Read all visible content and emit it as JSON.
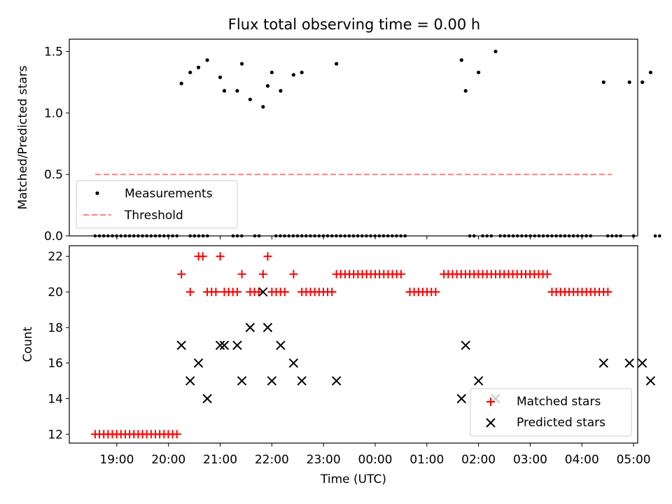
{
  "chart_data": [
    {
      "type": "scatter",
      "title": "Flux total observing time = 0.00 h",
      "ylabel": "Matched/Predicted stars",
      "ylim": [
        0,
        1.6
      ],
      "yticks": [
        0.0,
        0.5,
        1.0,
        1.5
      ],
      "ytick_labels": [
        "0.0",
        "0.5",
        "1.0",
        "1.5"
      ],
      "legend": {
        "placement": "lower-left",
        "entries": [
          "Measurements",
          "Threshold"
        ]
      },
      "threshold": {
        "name": "Threshold",
        "y": 0.5,
        "x_start": 18.58,
        "x_end": 28.58,
        "color": "#ff8080"
      },
      "measurements": {
        "name": "Measurements",
        "color": "#000000",
        "x_nonzero": [
          20.25,
          20.42,
          20.58,
          20.75,
          21.0,
          21.08,
          21.33,
          21.42,
          21.58,
          21.83,
          21.92,
          22.0,
          22.17,
          22.42,
          22.58,
          23.25,
          25.67,
          25.75,
          26.0,
          26.33,
          28.42,
          28.92,
          29.17,
          29.33
        ],
        "y_nonzero": [
          1.24,
          1.33,
          1.37,
          1.43,
          1.29,
          1.18,
          1.18,
          1.4,
          1.11,
          1.05,
          1.22,
          1.33,
          1.18,
          1.31,
          1.33,
          1.4,
          1.43,
          1.18,
          1.33,
          1.5,
          1.25,
          1.25,
          1.25,
          1.33
        ],
        "zero_segments": [
          [
            18.58,
            20.17,
            0.0833
          ],
          [
            20.42,
            20.83,
            0.0833
          ],
          [
            21.25,
            21.42,
            0.0833
          ],
          [
            21.67,
            21.83,
            0.0833
          ],
          [
            22.08,
            22.75,
            0.0833
          ],
          [
            22.83,
            24.58,
            0.0833
          ],
          [
            25.83,
            25.92,
            0.0833
          ],
          [
            26.08,
            26.25,
            0.0833
          ],
          [
            26.42,
            28.25,
            0.0833
          ],
          [
            28.5,
            28.83,
            0.0833
          ],
          [
            29.0,
            29.08,
            0.0833
          ],
          [
            29.42,
            29.58,
            0.0833
          ]
        ]
      }
    },
    {
      "type": "scatter",
      "xlabel": "Time (UTC)",
      "ylabel": "Count",
      "xlim": [
        18.08,
        29.08
      ],
      "ylim": [
        11.5,
        22.6
      ],
      "x_tick_hours": [
        19,
        20,
        21,
        22,
        23,
        24,
        25,
        26,
        27,
        28,
        29
      ],
      "x_tick_labels": [
        "19:00",
        "20:00",
        "21:00",
        "22:00",
        "23:00",
        "00:00",
        "01:00",
        "02:00",
        "03:00",
        "04:00",
        "05:00"
      ],
      "yticks": [
        12,
        14,
        16,
        18,
        20,
        22
      ],
      "ytick_labels": [
        "12",
        "14",
        "16",
        "18",
        "20",
        "22"
      ],
      "legend": {
        "placement": "lower-right",
        "entries": [
          "Matched stars",
          "Predicted stars"
        ]
      },
      "matched": {
        "name": "Matched stars",
        "color": "#ff0000",
        "segments": [
          [
            18.58,
            20.17,
            12
          ],
          [
            20.25,
            20.33,
            21
          ],
          [
            20.42,
            20.5,
            20
          ],
          [
            20.58,
            20.67,
            22
          ],
          [
            20.75,
            20.92,
            20
          ],
          [
            21.0,
            21.0,
            22
          ],
          [
            21.08,
            21.33,
            20
          ],
          [
            21.42,
            21.5,
            21
          ],
          [
            21.58,
            21.75,
            20
          ],
          [
            21.83,
            21.83,
            21
          ],
          [
            21.92,
            21.92,
            22
          ],
          [
            22.0,
            22.33,
            20
          ],
          [
            22.42,
            22.5,
            21
          ],
          [
            22.58,
            23.17,
            20
          ],
          [
            23.25,
            24.58,
            21
          ],
          [
            24.67,
            25.25,
            20
          ],
          [
            25.33,
            27.33,
            21
          ],
          [
            27.42,
            28.58,
            20
          ]
        ],
        "step": 0.0833
      },
      "predicted": {
        "name": "Predicted stars",
        "color": "#000000",
        "x": [
          20.25,
          20.42,
          20.58,
          20.75,
          21.0,
          21.08,
          21.33,
          21.42,
          21.58,
          21.83,
          21.92,
          22.0,
          22.17,
          22.42,
          22.58,
          23.25,
          25.67,
          25.75,
          26.0,
          26.33,
          28.42,
          28.92,
          29.17,
          29.33
        ],
        "y": [
          17,
          15,
          16,
          14,
          17,
          17,
          17,
          15,
          18,
          20,
          18,
          15,
          17,
          16,
          15,
          15,
          14,
          17,
          15,
          14,
          16,
          16,
          16,
          15
        ]
      }
    }
  ]
}
